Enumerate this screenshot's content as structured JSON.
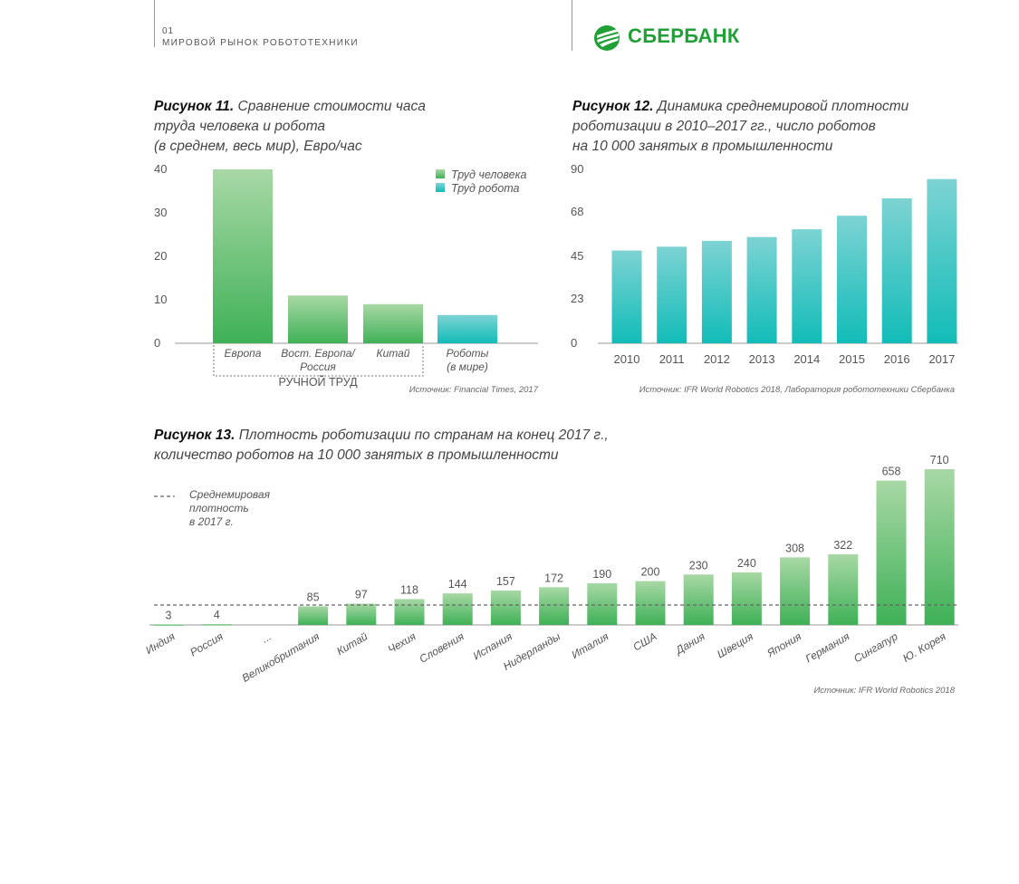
{
  "header": {
    "number": "01",
    "title": "МИРОВОЙ РЫНОК РОБОТОТЕХНИКИ",
    "brand": "СБЕРБАНК"
  },
  "colors": {
    "green_top": "#a8d8a5",
    "green_bottom": "#3fb157",
    "teal_top": "#7dd3d3",
    "teal_bottom": "#12bcb8",
    "axis": "#999999",
    "dash": "#666666",
    "brand": "#21a038"
  },
  "fig11": {
    "label": "Рисунок 11.",
    "lines": [
      "Сравнение стоимости часа",
      "труда человека и робота",
      "(в среднем, весь мир), Евро/час"
    ],
    "source": "Источник: Financial Times, 2017",
    "group_label": "РУЧНОЙ ТРУД"
  },
  "fig12": {
    "label": "Рисунок 12.",
    "lines": [
      "Динамика среднемировой плотности",
      "роботизации в 2010–2017 гг., число роботов",
      "на 10 000 занятых в промышленности"
    ],
    "source": "Источник: IFR World Robotics 2018, Лаборатория робототехники Сбербанка"
  },
  "fig13": {
    "label": "Рисунок 13.",
    "lines": [
      "Плотность роботизации по странам на конец 2017 г.,",
      "количество роботов на 10 000 занятых в промышленности"
    ],
    "source": "Источник: IFR World Robotics 2018",
    "legend_lines": [
      "Среднемировая",
      "плотность",
      "в 2017 г."
    ]
  },
  "chart_data": [
    {
      "id": "fig11",
      "type": "bar",
      "categories": [
        [
          "Европа"
        ],
        [
          "Вост. Европа/",
          "Россия"
        ],
        [
          "Китай"
        ],
        [
          "Роботы",
          "(в мире)"
        ]
      ],
      "series": [
        {
          "name": "Труд человека",
          "values": [
            40,
            11,
            9,
            null
          ]
        },
        {
          "name": "Труд робота",
          "values": [
            null,
            null,
            null,
            6.5
          ]
        }
      ],
      "yticks": [
        0,
        10,
        20,
        30,
        40
      ],
      "ylim": [
        0,
        40
      ],
      "legend": "top-right"
    },
    {
      "id": "fig12",
      "type": "bar",
      "categories": [
        "2010",
        "2011",
        "2012",
        "2013",
        "2014",
        "2015",
        "2016",
        "2017"
      ],
      "values": [
        48,
        50,
        53,
        55,
        59,
        66,
        75,
        85
      ],
      "yticks": [
        0,
        23,
        45,
        68,
        90
      ],
      "ylim": [
        0,
        90
      ]
    },
    {
      "id": "fig13",
      "type": "bar",
      "categories": [
        "Индия",
        "Россия",
        "...",
        "Великобритания",
        "Китай",
        "Чехия",
        "Словения",
        "Испания",
        "Нидерланды",
        "Италия",
        "США",
        "Дания",
        "Швеция",
        "Япония",
        "Германия",
        "Сингапур",
        "Ю. Корея"
      ],
      "values": [
        3,
        4,
        null,
        85,
        97,
        118,
        144,
        157,
        172,
        190,
        200,
        230,
        240,
        308,
        322,
        658,
        710
      ],
      "reference_line": {
        "value": 85
      }
    }
  ]
}
